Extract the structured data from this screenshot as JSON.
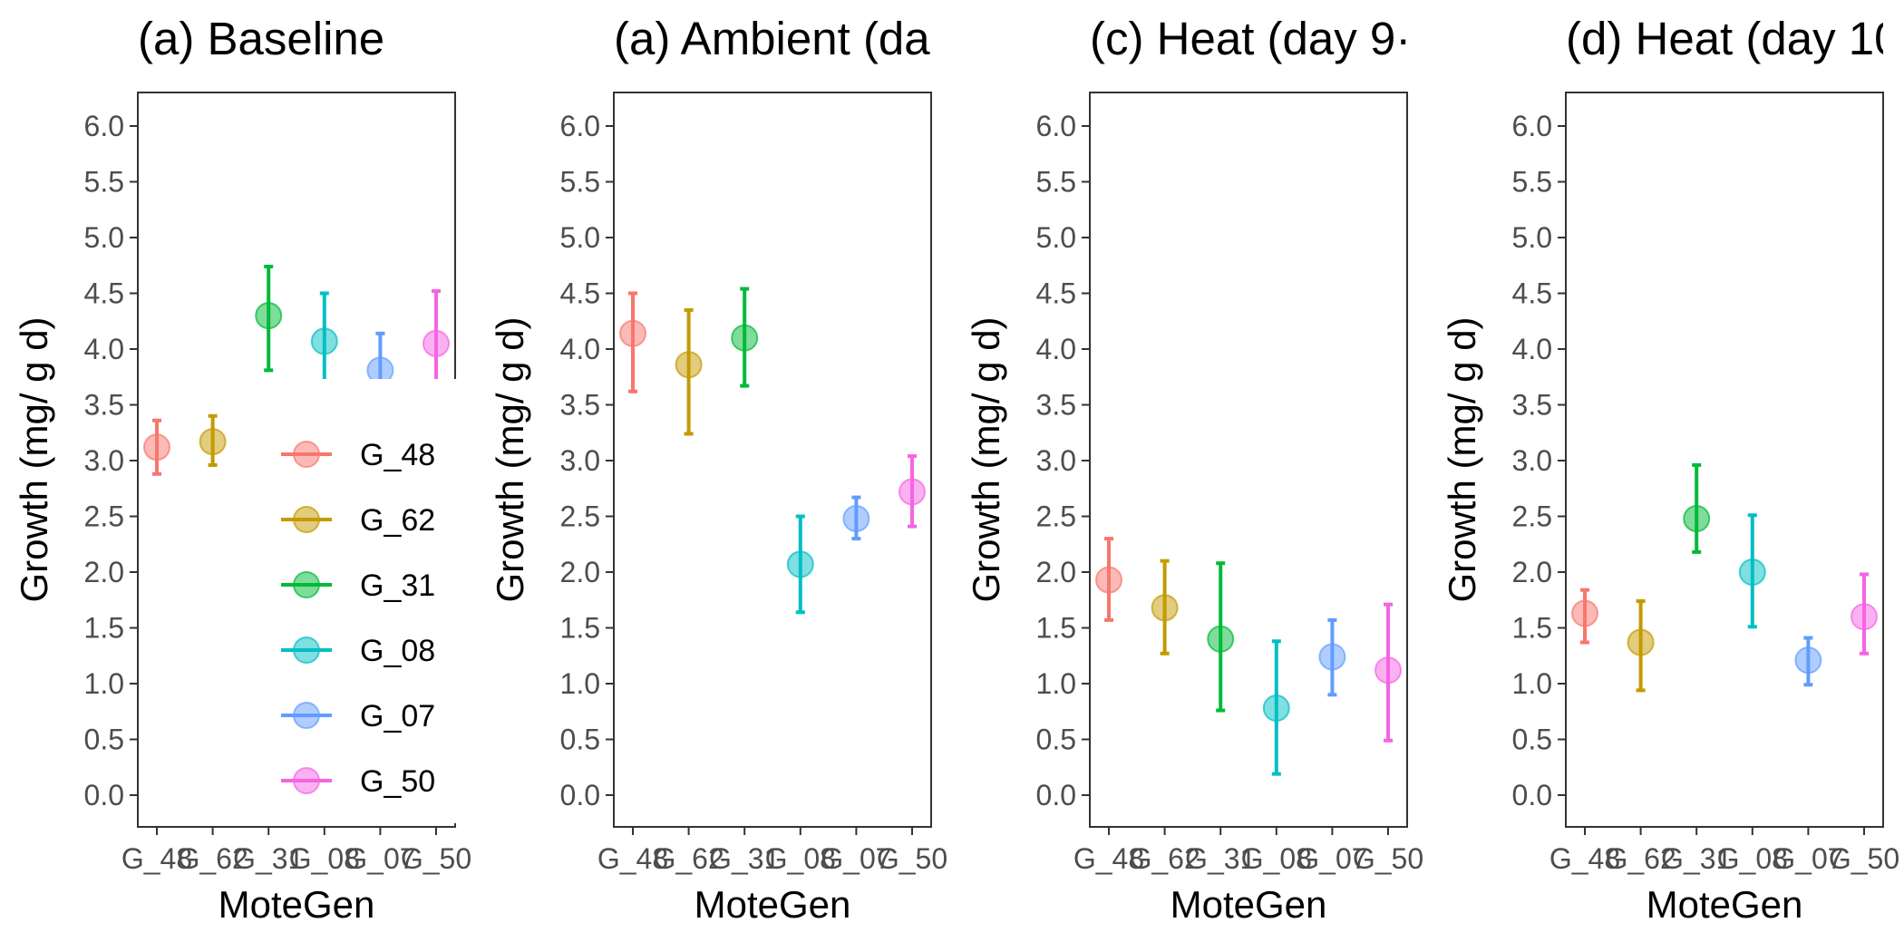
{
  "chart_data": [
    {
      "type": "scatter",
      "title": "(a) Baseline",
      "xlabel": "MoteGen",
      "ylabel": "Growth (mg/ g d)",
      "categories": [
        "G_48",
        "G_62",
        "G_31",
        "G_08",
        "G_07",
        "G_50"
      ],
      "y_ticks": [
        "0.0",
        "0.5",
        "1.0",
        "1.5",
        "2.0",
        "2.5",
        "3.0",
        "3.5",
        "4.0",
        "4.5",
        "5.0",
        "5.5",
        "6.0"
      ],
      "ylim": [
        -0.35,
        6.3
      ],
      "values": [
        3.12,
        3.17,
        4.3,
        4.07,
        3.81,
        4.05
      ],
      "error_low": [
        2.88,
        2.96,
        3.81,
        3.6,
        3.47,
        3.57
      ],
      "error_high": [
        3.36,
        3.4,
        4.74,
        4.5,
        4.14,
        4.52
      ],
      "grid": false,
      "legend_position": "inside-bottom-right"
    },
    {
      "type": "scatter",
      "title": "(a) Ambient (da",
      "xlabel": "MoteGen",
      "ylabel": "Growth (mg/ g d)",
      "categories": [
        "G_48",
        "G_62",
        "G_31",
        "G_08",
        "G_07",
        "G_50"
      ],
      "y_ticks": [
        "0.0",
        "0.5",
        "1.0",
        "1.5",
        "2.0",
        "2.5",
        "3.0",
        "3.5",
        "4.0",
        "4.5",
        "5.0",
        "5.5",
        "6.0"
      ],
      "ylim": [
        -0.35,
        6.3
      ],
      "values": [
        4.14,
        3.86,
        4.1,
        2.07,
        2.48,
        2.72
      ],
      "error_low": [
        3.62,
        3.24,
        3.67,
        1.64,
        2.3,
        2.41
      ],
      "error_high": [
        4.5,
        4.35,
        4.54,
        2.5,
        2.67,
        3.04
      ],
      "grid": false
    },
    {
      "type": "scatter",
      "title": "(c) Heat (day 9·",
      "xlabel": "MoteGen",
      "ylabel": "Growth (mg/ g d)",
      "categories": [
        "G_48",
        "G_62",
        "G_31",
        "G_08",
        "G_07",
        "G_50"
      ],
      "y_ticks": [
        "0.0",
        "0.5",
        "1.0",
        "1.5",
        "2.0",
        "2.5",
        "3.0",
        "3.5",
        "4.0",
        "4.5",
        "5.0",
        "5.5",
        "6.0"
      ],
      "ylim": [
        -0.35,
        6.3
      ],
      "values": [
        1.93,
        1.68,
        1.4,
        0.78,
        1.24,
        1.12
      ],
      "error_low": [
        1.57,
        1.27,
        0.76,
        0.19,
        0.9,
        0.49
      ],
      "error_high": [
        2.3,
        2.1,
        2.08,
        1.38,
        1.57,
        1.71
      ],
      "grid": false
    },
    {
      "type": "scatter",
      "title": "(d) Heat (day 10",
      "xlabel": "MoteGen",
      "ylabel": "Growth (mg/ g d)",
      "categories": [
        "G_48",
        "G_62",
        "G_31",
        "G_08",
        "G_07",
        "G_50"
      ],
      "y_ticks": [
        "0.0",
        "0.5",
        "1.0",
        "1.5",
        "2.0",
        "2.5",
        "3.0",
        "3.5",
        "4.0",
        "4.5",
        "5.0",
        "5.5",
        "6.0"
      ],
      "ylim": [
        -0.35,
        6.3
      ],
      "values": [
        1.63,
        1.37,
        2.48,
        2.0,
        1.21,
        1.6
      ],
      "error_low": [
        1.37,
        0.94,
        2.18,
        1.51,
        0.99,
        1.27
      ],
      "error_high": [
        1.84,
        1.74,
        2.96,
        2.51,
        1.41,
        1.98
      ],
      "grid": false
    }
  ],
  "legend": {
    "items": [
      "G_48",
      "G_62",
      "G_31",
      "G_08",
      "G_07",
      "G_50"
    ]
  },
  "colors": [
    "#F8766D",
    "#C49A00",
    "#00BA38",
    "#00BFC4",
    "#619CFF",
    "#F564E3"
  ]
}
